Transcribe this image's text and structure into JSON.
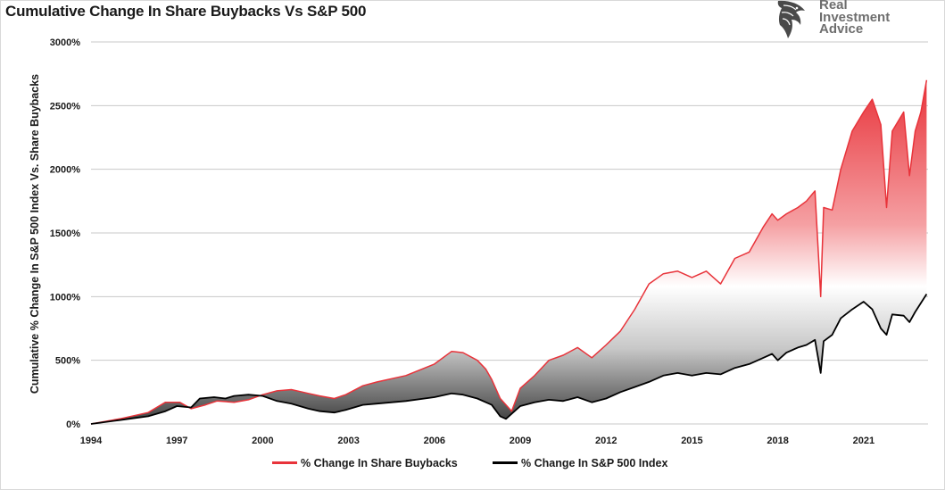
{
  "title": "Cumulative Change In Share Buybacks Vs S&P 500",
  "logo": {
    "line1": "Real",
    "line2": "Investment",
    "line3": "Advice"
  },
  "colors": {
    "buybacks": "#e8333a",
    "sp500": "#000000",
    "grid": "#c8c8c8"
  },
  "chart_data": {
    "type": "area",
    "title": "Cumulative Change In Share Buybacks Vs S&P 500",
    "xlabel": "",
    "ylabel": "Cumulative % Change In S&P 500 Index Vs. Share Buybacks",
    "xlim": [
      1994,
      2023.25
    ],
    "ylim": [
      0,
      3000
    ],
    "x_ticks": [
      "1994",
      "1997",
      "2000",
      "2003",
      "2006",
      "2009",
      "2012",
      "2015",
      "2018",
      "2021"
    ],
    "y_ticks": [
      "0%",
      "500%",
      "1000%",
      "1500%",
      "2000%",
      "2500%",
      "3000%"
    ],
    "grid": true,
    "legend": "bottom-center",
    "series": [
      {
        "name": "% Change In Share Buybacks",
        "color": "#e8333a",
        "points": [
          [
            1994,
            0
          ],
          [
            1995,
            40
          ],
          [
            1996,
            90
          ],
          [
            1996.6,
            170
          ],
          [
            1997.1,
            170
          ],
          [
            1997.5,
            120
          ],
          [
            1998,
            150
          ],
          [
            1998.4,
            180
          ],
          [
            1999,
            170
          ],
          [
            1999.5,
            190
          ],
          [
            2000,
            230
          ],
          [
            2000.5,
            260
          ],
          [
            2001,
            270
          ],
          [
            2001.6,
            240
          ],
          [
            2002,
            220
          ],
          [
            2002.5,
            200
          ],
          [
            2002.9,
            230
          ],
          [
            2003.5,
            300
          ],
          [
            2004,
            330
          ],
          [
            2005,
            380
          ],
          [
            2006,
            470
          ],
          [
            2006.6,
            570
          ],
          [
            2007,
            560
          ],
          [
            2007.5,
            500
          ],
          [
            2007.8,
            430
          ],
          [
            2008,
            350
          ],
          [
            2008.3,
            200
          ],
          [
            2008.7,
            100
          ],
          [
            2009,
            280
          ],
          [
            2009.5,
            380
          ],
          [
            2010,
            500
          ],
          [
            2010.5,
            540
          ],
          [
            2011,
            600
          ],
          [
            2011.5,
            520
          ],
          [
            2012,
            620
          ],
          [
            2012.5,
            730
          ],
          [
            2013,
            900
          ],
          [
            2013.5,
            1100
          ],
          [
            2014,
            1180
          ],
          [
            2014.5,
            1200
          ],
          [
            2015,
            1150
          ],
          [
            2015.5,
            1200
          ],
          [
            2016,
            1100
          ],
          [
            2016.5,
            1300
          ],
          [
            2017,
            1350
          ],
          [
            2017.5,
            1550
          ],
          [
            2017.8,
            1650
          ],
          [
            2018,
            1600
          ],
          [
            2018.3,
            1650
          ],
          [
            2018.7,
            1700
          ],
          [
            2019,
            1750
          ],
          [
            2019.3,
            1830
          ],
          [
            2019.5,
            1000
          ],
          [
            2019.6,
            1700
          ],
          [
            2019.9,
            1680
          ],
          [
            2020.2,
            2000
          ],
          [
            2020.6,
            2300
          ],
          [
            2021,
            2450
          ],
          [
            2021.3,
            2550
          ],
          [
            2021.6,
            2350
          ],
          [
            2021.8,
            1700
          ],
          [
            2022,
            2300
          ],
          [
            2022.4,
            2450
          ],
          [
            2022.6,
            1950
          ],
          [
            2022.8,
            2300
          ],
          [
            2023,
            2450
          ],
          [
            2023.2,
            2700
          ]
        ]
      },
      {
        "name": "% Change In S&P 500 Index",
        "color": "#000000",
        "points": [
          [
            1994,
            0
          ],
          [
            1995,
            30
          ],
          [
            1996,
            60
          ],
          [
            1996.6,
            100
          ],
          [
            1997,
            140
          ],
          [
            1997.5,
            130
          ],
          [
            1997.8,
            200
          ],
          [
            1998.3,
            210
          ],
          [
            1998.7,
            200
          ],
          [
            1999,
            220
          ],
          [
            1999.5,
            230
          ],
          [
            2000,
            220
          ],
          [
            2000.5,
            180
          ],
          [
            2001,
            160
          ],
          [
            2001.6,
            120
          ],
          [
            2002,
            100
          ],
          [
            2002.5,
            90
          ],
          [
            2002.9,
            110
          ],
          [
            2003.5,
            150
          ],
          [
            2004,
            160
          ],
          [
            2005,
            180
          ],
          [
            2006,
            210
          ],
          [
            2006.6,
            240
          ],
          [
            2007,
            230
          ],
          [
            2007.5,
            200
          ],
          [
            2008,
            150
          ],
          [
            2008.3,
            60
          ],
          [
            2008.5,
            40
          ],
          [
            2009,
            140
          ],
          [
            2009.5,
            170
          ],
          [
            2010,
            190
          ],
          [
            2010.5,
            180
          ],
          [
            2011,
            210
          ],
          [
            2011.5,
            170
          ],
          [
            2012,
            200
          ],
          [
            2012.5,
            250
          ],
          [
            2013,
            290
          ],
          [
            2013.5,
            330
          ],
          [
            2014,
            380
          ],
          [
            2014.5,
            400
          ],
          [
            2015,
            380
          ],
          [
            2015.5,
            400
          ],
          [
            2016,
            390
          ],
          [
            2016.5,
            440
          ],
          [
            2017,
            470
          ],
          [
            2017.5,
            520
          ],
          [
            2017.8,
            550
          ],
          [
            2018,
            500
          ],
          [
            2018.3,
            560
          ],
          [
            2018.7,
            600
          ],
          [
            2019,
            620
          ],
          [
            2019.3,
            660
          ],
          [
            2019.5,
            400
          ],
          [
            2019.6,
            650
          ],
          [
            2019.9,
            700
          ],
          [
            2020.2,
            830
          ],
          [
            2020.6,
            900
          ],
          [
            2021,
            960
          ],
          [
            2021.3,
            900
          ],
          [
            2021.6,
            750
          ],
          [
            2021.8,
            700
          ],
          [
            2022,
            860
          ],
          [
            2022.4,
            850
          ],
          [
            2022.6,
            800
          ],
          [
            2022.8,
            880
          ],
          [
            2023,
            950
          ],
          [
            2023.2,
            1020
          ]
        ]
      }
    ]
  }
}
